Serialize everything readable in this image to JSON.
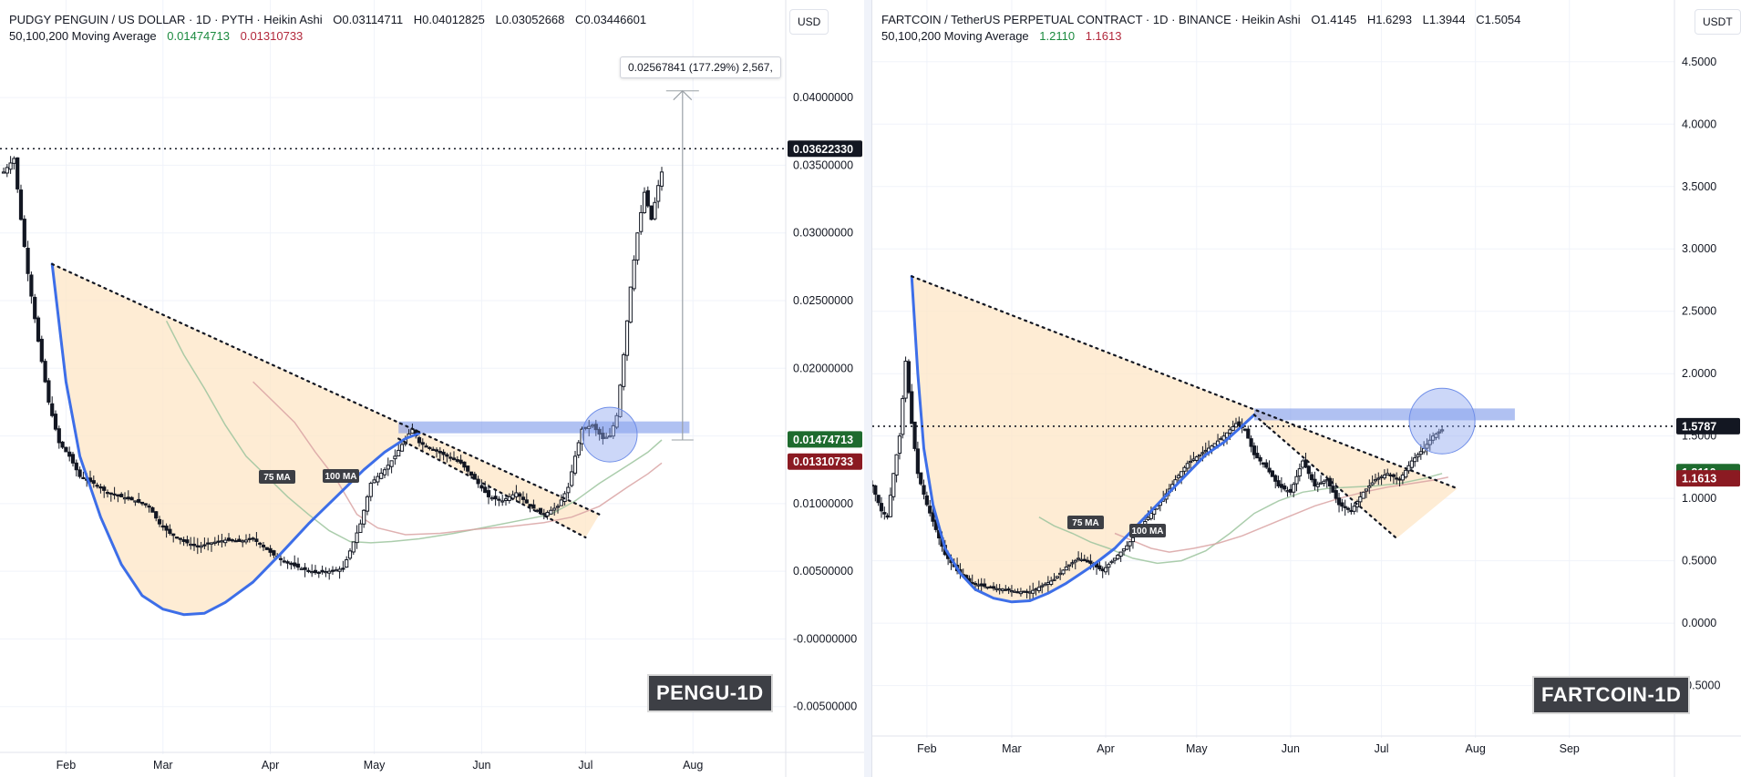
{
  "chart_data": [
    {
      "type": "line",
      "title": "PUDGY PENGUIN / US DOLLAR · 1D · PYTH · Heikin Ashi",
      "ohlc": {
        "O": "0.03114711",
        "H": "0.04012825",
        "L": "0.03052668",
        "C": "0.03446601"
      },
      "ma_title": "50,100,200 Moving Average",
      "ma_values": [
        "0.01474713",
        "0.01310733"
      ],
      "currency": "USD",
      "watermark": "PENGU-1D",
      "measure_label": "0.02567841 (177.29%) 2,567,",
      "ma75_label": "75 MA",
      "ma100_label": "100 MA",
      "ylim": [
        -0.0065,
        0.0425
      ],
      "y_ticks": [
        {
          "v": 0.04,
          "label": "0.04000000"
        },
        {
          "v": 0.035,
          "label": "0.03500000"
        },
        {
          "v": 0.03,
          "label": "0.03000000"
        },
        {
          "v": 0.025,
          "label": "0.02500000"
        },
        {
          "v": 0.02,
          "label": "0.02000000"
        },
        {
          "v": 0.015,
          "label": "0.01500000"
        },
        {
          "v": 0.01,
          "label": "0.01000000"
        },
        {
          "v": 0.005,
          "label": "0.00500000"
        },
        {
          "v": 0.0,
          "label": "-0.00000000"
        },
        {
          "v": -0.005,
          "label": "-0.00500000"
        }
      ],
      "price_tags": [
        {
          "v": 0.0362233,
          "label": "0.03622330",
          "color": "#131722"
        },
        {
          "v": 0.01474713,
          "label": "0.01474713",
          "color": "#1e6b2e"
        },
        {
          "v": 0.01310733,
          "label": "0.01310733",
          "color": "#8b1a22"
        }
      ],
      "x_months": [
        {
          "t": 18,
          "label": "Feb"
        },
        {
          "t": 46,
          "label": "Mar"
        },
        {
          "t": 77,
          "label": "Apr"
        },
        {
          "t": 107,
          "label": "May"
        },
        {
          "t": 138,
          "label": "Jun"
        },
        {
          "t": 168,
          "label": "Jul"
        },
        {
          "t": 199,
          "label": "Aug"
        }
      ],
      "xlim": [
        0,
        210
      ],
      "price_path": [
        [
          0,
          0.0345
        ],
        [
          3,
          0.0355
        ],
        [
          5,
          0.031
        ],
        [
          7,
          0.027
        ],
        [
          10,
          0.022
        ],
        [
          13,
          0.0175
        ],
        [
          16,
          0.0145
        ],
        [
          19,
          0.0135
        ],
        [
          22,
          0.012
        ],
        [
          26,
          0.0115
        ],
        [
          30,
          0.0108
        ],
        [
          34,
          0.0105
        ],
        [
          38,
          0.0102
        ],
        [
          42,
          0.0098
        ],
        [
          45,
          0.0085
        ],
        [
          48,
          0.0078
        ],
        [
          52,
          0.0072
        ],
        [
          56,
          0.0068
        ],
        [
          60,
          0.0071
        ],
        [
          64,
          0.0073
        ],
        [
          68,
          0.0072
        ],
        [
          72,
          0.0074
        ],
        [
          75,
          0.0068
        ],
        [
          78,
          0.0062
        ],
        [
          82,
          0.0056
        ],
        [
          86,
          0.0052
        ],
        [
          90,
          0.0049
        ],
        [
          94,
          0.005
        ],
        [
          98,
          0.0052
        ],
        [
          100,
          0.0065
        ],
        [
          103,
          0.0085
        ],
        [
          106,
          0.0115
        ],
        [
          110,
          0.0125
        ],
        [
          113,
          0.0135
        ],
        [
          116,
          0.0148
        ],
        [
          118,
          0.0155
        ],
        [
          120,
          0.0145
        ],
        [
          124,
          0.014
        ],
        [
          128,
          0.0135
        ],
        [
          132,
          0.013
        ],
        [
          136,
          0.0118
        ],
        [
          140,
          0.0105
        ],
        [
          144,
          0.0102
        ],
        [
          148,
          0.0108
        ],
        [
          152,
          0.0098
        ],
        [
          156,
          0.0092
        ],
        [
          160,
          0.0098
        ],
        [
          163,
          0.0112
        ],
        [
          165,
          0.0135
        ],
        [
          167,
          0.0155
        ],
        [
          170,
          0.0158
        ],
        [
          173,
          0.0148
        ],
        [
          175,
          0.015
        ],
        [
          177,
          0.0165
        ],
        [
          179,
          0.021
        ],
        [
          181,
          0.026
        ],
        [
          183,
          0.03
        ],
        [
          185,
          0.033
        ],
        [
          187,
          0.031
        ],
        [
          189,
          0.0335
        ],
        [
          190,
          0.0345
        ]
      ],
      "ma75": [
        [
          47,
          0.0235
        ],
        [
          52,
          0.021
        ],
        [
          58,
          0.0185
        ],
        [
          64,
          0.0158
        ],
        [
          70,
          0.0135
        ],
        [
          76,
          0.012
        ],
        [
          82,
          0.0105
        ],
        [
          88,
          0.0092
        ],
        [
          94,
          0.008
        ],
        [
          100,
          0.0072
        ],
        [
          106,
          0.0071
        ],
        [
          112,
          0.0072
        ],
        [
          120,
          0.0074
        ],
        [
          130,
          0.0078
        ],
        [
          140,
          0.0083
        ],
        [
          150,
          0.0088
        ],
        [
          158,
          0.0092
        ],
        [
          165,
          0.0102
        ],
        [
          172,
          0.0115
        ],
        [
          180,
          0.0128
        ],
        [
          186,
          0.0138
        ],
        [
          190,
          0.0147
        ]
      ],
      "ma100": [
        [
          72,
          0.019
        ],
        [
          78,
          0.0175
        ],
        [
          84,
          0.016
        ],
        [
          90,
          0.0138
        ],
        [
          96,
          0.0118
        ],
        [
          102,
          0.0092
        ],
        [
          108,
          0.0082
        ],
        [
          116,
          0.0077
        ],
        [
          126,
          0.0078
        ],
        [
          136,
          0.0081
        ],
        [
          146,
          0.0083
        ],
        [
          156,
          0.0086
        ],
        [
          164,
          0.009
        ],
        [
          172,
          0.0098
        ],
        [
          180,
          0.0112
        ],
        [
          186,
          0.0122
        ],
        [
          190,
          0.013
        ]
      ],
      "cup_curve": [
        [
          14,
          0.0277
        ],
        [
          18,
          0.019
        ],
        [
          22,
          0.0135
        ],
        [
          28,
          0.009
        ],
        [
          34,
          0.0055
        ],
        [
          40,
          0.0032
        ],
        [
          46,
          0.0022
        ],
        [
          52,
          0.0018
        ],
        [
          58,
          0.0019
        ],
        [
          64,
          0.0027
        ],
        [
          72,
          0.0042
        ],
        [
          80,
          0.0063
        ],
        [
          88,
          0.0085
        ],
        [
          96,
          0.0105
        ],
        [
          104,
          0.0125
        ],
        [
          110,
          0.0138
        ],
        [
          116,
          0.0148
        ],
        [
          120,
          0.0152
        ]
      ],
      "trend_top": [
        [
          14,
          0.0277
        ],
        [
          172,
          0.0092
        ]
      ],
      "trend_bottom": [
        [
          114,
          0.0148
        ],
        [
          168,
          0.0075
        ]
      ],
      "cup_fill_extra": [
        [
          172,
          0.0092
        ],
        [
          168,
          0.0075
        ]
      ],
      "resistance": [
        [
          114,
          0.0156
        ],
        [
          198,
          0.0147
        ]
      ],
      "measure_line": [
        [
          196,
          0.0147
        ],
        [
          196,
          0.0405
        ]
      ],
      "circle": [
        175,
        0.0151
      ],
      "dotted_level": 0.0362233
    },
    {
      "type": "line",
      "title": "FARTCOIN / TetherUS PERPETUAL CONTRACT · 1D · BINANCE · Heikin Ashi",
      "ohlc": {
        "O": "1.4145",
        "H": "1.6293",
        "L": "1.3944",
        "C": "1.5054"
      },
      "ma_title": "50,100,200 Moving Average",
      "ma_values": [
        "1.2110",
        "1.1613"
      ],
      "currency": "USDT",
      "watermark": "FARTCOIN-1D",
      "ma75_label": "75 MA",
      "ma100_label": "100 MA",
      "ylim": [
        -0.7,
        4.63
      ],
      "y_ticks": [
        {
          "v": 4.5,
          "label": "4.5000"
        },
        {
          "v": 4.0,
          "label": "4.0000"
        },
        {
          "v": 3.5,
          "label": "3.5000"
        },
        {
          "v": 3.0,
          "label": "3.0000"
        },
        {
          "v": 2.5,
          "label": "2.5000"
        },
        {
          "v": 2.0,
          "label": "2.0000"
        },
        {
          "v": 1.5,
          "label": "1.5000"
        },
        {
          "v": 1.0,
          "label": "1.0000"
        },
        {
          "v": 0.5,
          "label": "0.5000"
        },
        {
          "v": 0.0,
          "label": "0.0000"
        },
        {
          "v": -0.5,
          "label": "-0.5000"
        }
      ],
      "price_tags": [
        {
          "v": 1.5787,
          "label": "1.5787",
          "color": "#131722"
        },
        {
          "v": 1.211,
          "label": "1.2110",
          "color": "#1e6b2e"
        },
        {
          "v": 1.1613,
          "label": "1.1613",
          "color": "#8b1a22"
        }
      ],
      "x_months": [
        {
          "t": 18,
          "label": "Feb"
        },
        {
          "t": 46,
          "label": "Mar"
        },
        {
          "t": 77,
          "label": "Apr"
        },
        {
          "t": 107,
          "label": "May"
        },
        {
          "t": 138,
          "label": "Jun"
        },
        {
          "t": 168,
          "label": "Jul"
        },
        {
          "t": 199,
          "label": "Aug"
        },
        {
          "t": 230,
          "label": "Sep"
        }
      ],
      "xlim": [
        0,
        240
      ],
      "price_path": [
        [
          0,
          1.1
        ],
        [
          3,
          0.9
        ],
        [
          5,
          0.85
        ],
        [
          7,
          1.2
        ],
        [
          9,
          1.5
        ],
        [
          11,
          2.1
        ],
        [
          13,
          1.6
        ],
        [
          15,
          1.2
        ],
        [
          18,
          0.95
        ],
        [
          21,
          0.75
        ],
        [
          24,
          0.55
        ],
        [
          28,
          0.42
        ],
        [
          32,
          0.33
        ],
        [
          36,
          0.3
        ],
        [
          40,
          0.28
        ],
        [
          44,
          0.27
        ],
        [
          48,
          0.25
        ],
        [
          52,
          0.25
        ],
        [
          56,
          0.3
        ],
        [
          60,
          0.35
        ],
        [
          64,
          0.45
        ],
        [
          68,
          0.52
        ],
        [
          72,
          0.48
        ],
        [
          76,
          0.42
        ],
        [
          80,
          0.52
        ],
        [
          84,
          0.62
        ],
        [
          88,
          0.75
        ],
        [
          92,
          0.88
        ],
        [
          96,
          1.0
        ],
        [
          100,
          1.15
        ],
        [
          104,
          1.28
        ],
        [
          108,
          1.35
        ],
        [
          112,
          1.42
        ],
        [
          116,
          1.5
        ],
        [
          120,
          1.6
        ],
        [
          123,
          1.55
        ],
        [
          126,
          1.35
        ],
        [
          130,
          1.25
        ],
        [
          134,
          1.1
        ],
        [
          138,
          1.05
        ],
        [
          142,
          1.3
        ],
        [
          146,
          1.1
        ],
        [
          150,
          1.15
        ],
        [
          154,
          0.95
        ],
        [
          158,
          0.9
        ],
        [
          162,
          1.05
        ],
        [
          166,
          1.15
        ],
        [
          170,
          1.2
        ],
        [
          174,
          1.15
        ],
        [
          178,
          1.3
        ],
        [
          182,
          1.4
        ],
        [
          185,
          1.5
        ],
        [
          188,
          1.55
        ]
      ],
      "ma75": [
        [
          55,
          0.85
        ],
        [
          60,
          0.78
        ],
        [
          66,
          0.72
        ],
        [
          72,
          0.65
        ],
        [
          78,
          0.6
        ],
        [
          86,
          0.52
        ],
        [
          94,
          0.48
        ],
        [
          102,
          0.5
        ],
        [
          110,
          0.58
        ],
        [
          118,
          0.72
        ],
        [
          126,
          0.88
        ],
        [
          134,
          0.98
        ],
        [
          142,
          1.05
        ],
        [
          150,
          1.08
        ],
        [
          158,
          1.09
        ],
        [
          166,
          1.1
        ],
        [
          174,
          1.12
        ],
        [
          182,
          1.16
        ],
        [
          188,
          1.2
        ]
      ],
      "ma100": [
        [
          80,
          0.72
        ],
        [
          86,
          0.66
        ],
        [
          92,
          0.6
        ],
        [
          98,
          0.57
        ],
        [
          106,
          0.6
        ],
        [
          114,
          0.64
        ],
        [
          122,
          0.7
        ],
        [
          130,
          0.78
        ],
        [
          138,
          0.86
        ],
        [
          146,
          0.94
        ],
        [
          154,
          1.0
        ],
        [
          162,
          1.05
        ],
        [
          170,
          1.09
        ],
        [
          178,
          1.12
        ],
        [
          186,
          1.15
        ],
        [
          190,
          1.17
        ]
      ],
      "cup_curve": [
        [
          13,
          2.78
        ],
        [
          15,
          2.0
        ],
        [
          17,
          1.4
        ],
        [
          20,
          0.95
        ],
        [
          24,
          0.6
        ],
        [
          29,
          0.4
        ],
        [
          34,
          0.27
        ],
        [
          40,
          0.2
        ],
        [
          46,
          0.17
        ],
        [
          52,
          0.18
        ],
        [
          58,
          0.24
        ],
        [
          64,
          0.32
        ],
        [
          72,
          0.45
        ],
        [
          80,
          0.6
        ],
        [
          88,
          0.8
        ],
        [
          96,
          1.0
        ],
        [
          104,
          1.2
        ],
        [
          110,
          1.35
        ],
        [
          116,
          1.45
        ],
        [
          122,
          1.58
        ],
        [
          126,
          1.67
        ]
      ],
      "trend_top": [
        [
          13,
          2.78
        ],
        [
          193,
          1.08
        ]
      ],
      "trend_bottom": [
        [
          126,
          1.67
        ],
        [
          173,
          0.68
        ]
      ],
      "cup_fill_extra": [
        [
          193,
          1.08
        ],
        [
          173,
          0.68
        ]
      ],
      "resistance": [
        [
          126,
          1.67
        ],
        [
          212,
          1.64
        ]
      ],
      "circle": [
        188,
        1.62
      ],
      "dotted_level": 1.5787
    }
  ]
}
